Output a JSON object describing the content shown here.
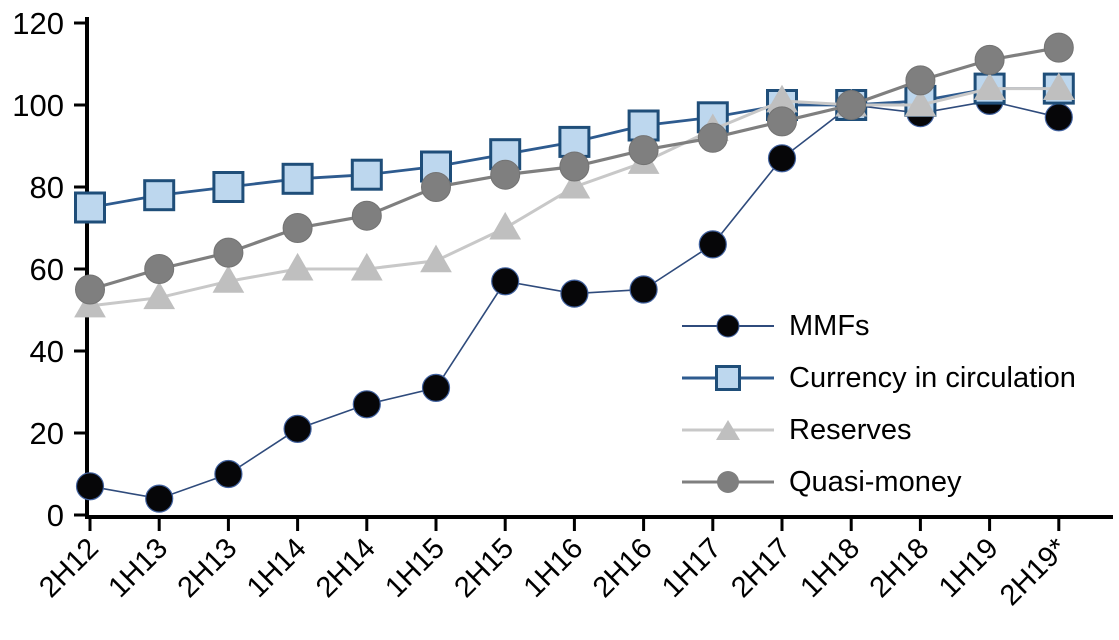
{
  "chart_data": {
    "type": "line",
    "title": "",
    "xlabel": "",
    "ylabel": "",
    "grid": false,
    "background": "#FFFFFF",
    "axis_color": "#000000",
    "legend_position": "inside-right",
    "categories": [
      "2H12",
      "1H13",
      "2H13",
      "1H14",
      "2H14",
      "1H15",
      "2H15",
      "1H16",
      "2H16",
      "1H17",
      "2H17",
      "1H18",
      "2H18",
      "1H19",
      "2H19*"
    ],
    "yaxis": {
      "min": 0,
      "max": 120,
      "step": 20,
      "tick_labels": [
        "0",
        "20",
        "40",
        "60",
        "80",
        "100",
        "120"
      ]
    },
    "series": [
      {
        "name": "MMFs",
        "marker": "circle",
        "values": [
          7,
          4,
          10,
          21,
          27,
          31,
          57,
          54,
          55,
          66,
          87,
          100,
          98,
          101,
          97
        ],
        "line_color": "#2F4B7C",
        "line_width": 1.6,
        "marker_fill": "#060608",
        "marker_stroke": "#41619E",
        "marker_stroke_width": 1.2,
        "marker_size": 27
      },
      {
        "name": "Currency in circulation",
        "marker": "square",
        "values": [
          75,
          78,
          80,
          82,
          83,
          85,
          88,
          91,
          95,
          97,
          100,
          100,
          101,
          104,
          104
        ],
        "line_color": "#2E5B8F",
        "line_width": 2.8,
        "marker_fill": "#BDD7EE",
        "marker_stroke": "#1F4E79",
        "marker_stroke_width": 3,
        "marker_size": 29
      },
      {
        "name": "Reserves",
        "marker": "triangle",
        "values": [
          51,
          53,
          57,
          60,
          60,
          62,
          70,
          80,
          86,
          94,
          101,
          100,
          100,
          104,
          104
        ],
        "line_color": "#C8C8C8",
        "line_width": 3,
        "marker_fill": "#BFBFBF",
        "marker_stroke": "#BFBFBF",
        "marker_stroke_width": 1,
        "marker_size": 30
      },
      {
        "name": "Quasi-money",
        "marker": "circle",
        "values": [
          55,
          60,
          64,
          70,
          73,
          80,
          83,
          85,
          89,
          92,
          96,
          100,
          106,
          111,
          114
        ],
        "line_color": "#7F7F7F",
        "line_width": 3.2,
        "marker_fill": "#7F7F7F",
        "marker_stroke": "#737373",
        "marker_stroke_width": 1,
        "marker_size": 29
      }
    ]
  }
}
